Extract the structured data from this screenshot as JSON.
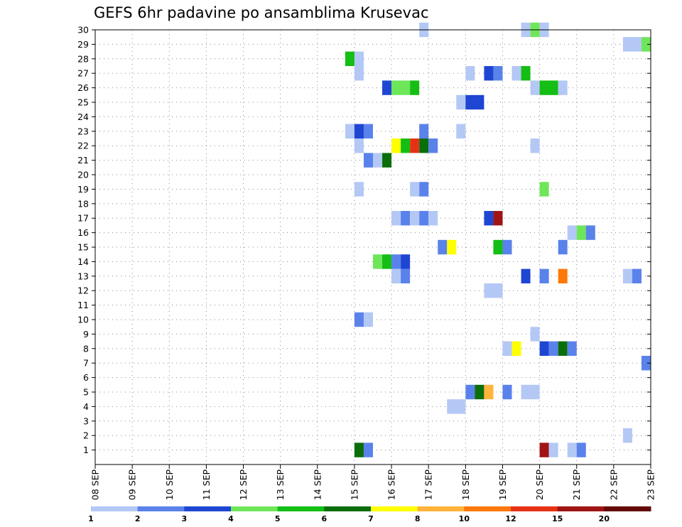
{
  "chart_data": {
    "type": "heatmap",
    "title": "GEFS 6hr padavine po ansamblima Krusevac",
    "xlabel": "",
    "ylabel": "",
    "x_ticks": [
      "08 SEP",
      "09 SEP",
      "10 SEP",
      "11 SEP",
      "12 SEP",
      "13 SEP",
      "14 SEP",
      "15 SEP",
      "16 SEP",
      "17 SEP",
      "18 SEP",
      "19 SEP",
      "20 SEP",
      "21 SEP",
      "22 SEP",
      "23 SEP"
    ],
    "y_ticks": [
      "1",
      "2",
      "3",
      "4",
      "5",
      "6",
      "7",
      "8",
      "9",
      "10",
      "11",
      "12",
      "13",
      "14",
      "15",
      "16",
      "17",
      "18",
      "19",
      "20",
      "21",
      "22",
      "23",
      "24",
      "25",
      "26",
      "27",
      "28",
      "29",
      "30"
    ],
    "x_range_days": [
      0,
      15
    ],
    "y_range": [
      0,
      30
    ],
    "grid": true,
    "legend": {
      "placement": "bottom",
      "labels": [
        "1",
        "2",
        "3",
        "4",
        "5",
        "6",
        "7",
        "8",
        "10",
        "12",
        "15",
        "20"
      ],
      "colors": [
        "#b4c8f5",
        "#5a82eb",
        "#1e46d2",
        "#6ee65a",
        "#14be14",
        "#0a6e0a",
        "#ffff00",
        "#ffb43c",
        "#ff780a",
        "#e63214",
        "#a01414",
        "#640a0a"
      ]
    },
    "cells": [
      {
        "m": 1,
        "t": [
          7.0,
          7.25
        ],
        "c": 5
      },
      {
        "m": 1,
        "t": [
          7.25,
          7.5
        ],
        "c": 1
      },
      {
        "m": 1,
        "t": [
          12.0,
          12.25
        ],
        "c": 10
      },
      {
        "m": 1,
        "t": [
          12.25,
          12.5
        ],
        "c": 0
      },
      {
        "m": 1,
        "t": [
          12.75,
          13.0
        ],
        "c": 0
      },
      {
        "m": 1,
        "t": [
          13.0,
          13.25
        ],
        "c": 1
      },
      {
        "m": 2,
        "t": [
          14.25,
          14.5
        ],
        "c": 0
      },
      {
        "m": 4,
        "t": [
          9.5,
          10.0
        ],
        "c": 0
      },
      {
        "m": 5,
        "t": [
          10.0,
          10.25
        ],
        "c": 1
      },
      {
        "m": 5,
        "t": [
          10.25,
          10.5
        ],
        "c": 5
      },
      {
        "m": 5,
        "t": [
          10.5,
          10.75
        ],
        "c": 7
      },
      {
        "m": 5,
        "t": [
          11.0,
          11.25
        ],
        "c": 1
      },
      {
        "m": 5,
        "t": [
          11.5,
          12.0
        ],
        "c": 0
      },
      {
        "m": 7,
        "t": [
          14.75,
          15.0
        ],
        "c": 1
      },
      {
        "m": 8,
        "t": [
          11.0,
          11.25
        ],
        "c": 0
      },
      {
        "m": 8,
        "t": [
          11.25,
          11.5
        ],
        "c": 6
      },
      {
        "m": 8,
        "t": [
          12.0,
          12.25
        ],
        "c": 2
      },
      {
        "m": 8,
        "t": [
          12.25,
          12.5
        ],
        "c": 1
      },
      {
        "m": 8,
        "t": [
          12.5,
          12.75
        ],
        "c": 5
      },
      {
        "m": 8,
        "t": [
          12.75,
          13.0
        ],
        "c": 1
      },
      {
        "m": 9,
        "t": [
          11.75,
          12.0
        ],
        "c": 0
      },
      {
        "m": 10,
        "t": [
          7.0,
          7.25
        ],
        "c": 1
      },
      {
        "m": 10,
        "t": [
          7.25,
          7.5
        ],
        "c": 0
      },
      {
        "m": 12,
        "t": [
          10.5,
          11.0
        ],
        "c": 0
      },
      {
        "m": 13,
        "t": [
          8.0,
          8.25
        ],
        "c": 0
      },
      {
        "m": 13,
        "t": [
          8.25,
          8.5
        ],
        "c": 1
      },
      {
        "m": 13,
        "t": [
          11.5,
          11.75
        ],
        "c": 2
      },
      {
        "m": 13,
        "t": [
          12.0,
          12.25
        ],
        "c": 1
      },
      {
        "m": 13,
        "t": [
          12.5,
          12.75
        ],
        "c": 8
      },
      {
        "m": 13,
        "t": [
          14.25,
          14.5
        ],
        "c": 0
      },
      {
        "m": 13,
        "t": [
          14.5,
          14.75
        ],
        "c": 1
      },
      {
        "m": 14,
        "t": [
          7.5,
          7.75
        ],
        "c": 3
      },
      {
        "m": 14,
        "t": [
          7.75,
          8.0
        ],
        "c": 4
      },
      {
        "m": 14,
        "t": [
          8.0,
          8.25
        ],
        "c": 1
      },
      {
        "m": 14,
        "t": [
          8.25,
          8.5
        ],
        "c": 2
      },
      {
        "m": 15,
        "t": [
          9.25,
          9.5
        ],
        "c": 1
      },
      {
        "m": 15,
        "t": [
          9.5,
          9.75
        ],
        "c": 6
      },
      {
        "m": 15,
        "t": [
          10.75,
          11.0
        ],
        "c": 4
      },
      {
        "m": 15,
        "t": [
          11.0,
          11.25
        ],
        "c": 1
      },
      {
        "m": 15,
        "t": [
          12.5,
          12.75
        ],
        "c": 1
      },
      {
        "m": 16,
        "t": [
          12.75,
          13.0
        ],
        "c": 0
      },
      {
        "m": 16,
        "t": [
          13.0,
          13.25
        ],
        "c": 3
      },
      {
        "m": 16,
        "t": [
          13.25,
          13.5
        ],
        "c": 1
      },
      {
        "m": 17,
        "t": [
          8.0,
          8.25
        ],
        "c": 0
      },
      {
        "m": 17,
        "t": [
          8.25,
          8.5
        ],
        "c": 1
      },
      {
        "m": 17,
        "t": [
          8.5,
          8.75
        ],
        "c": 0
      },
      {
        "m": 17,
        "t": [
          8.75,
          9.0
        ],
        "c": 1
      },
      {
        "m": 17,
        "t": [
          9.0,
          9.25
        ],
        "c": 0
      },
      {
        "m": 17,
        "t": [
          10.5,
          10.75
        ],
        "c": 2
      },
      {
        "m": 17,
        "t": [
          10.75,
          11.0
        ],
        "c": 10
      },
      {
        "m": 19,
        "t": [
          8.5,
          8.75
        ],
        "c": 0
      },
      {
        "m": 19,
        "t": [
          8.75,
          9.0
        ],
        "c": 1
      },
      {
        "m": 19,
        "t": [
          12.0,
          12.25
        ],
        "c": 3
      },
      {
        "m": 19,
        "t": [
          7.0,
          7.25
        ],
        "c": 0
      },
      {
        "m": 21,
        "t": [
          7.25,
          7.5
        ],
        "c": 1
      },
      {
        "m": 21,
        "t": [
          7.5,
          7.75
        ],
        "c": 0
      },
      {
        "m": 21,
        "t": [
          7.75,
          8.0
        ],
        "c": 5
      },
      {
        "m": 22,
        "t": [
          7.0,
          7.25
        ],
        "c": 0
      },
      {
        "m": 22,
        "t": [
          8.0,
          8.25
        ],
        "c": 6
      },
      {
        "m": 22,
        "t": [
          8.25,
          8.5
        ],
        "c": 4
      },
      {
        "m": 22,
        "t": [
          8.5,
          8.75
        ],
        "c": 9
      },
      {
        "m": 22,
        "t": [
          8.75,
          9.0
        ],
        "c": 5
      },
      {
        "m": 22,
        "t": [
          9.0,
          9.25
        ],
        "c": 1
      },
      {
        "m": 22,
        "t": [
          11.75,
          12.0
        ],
        "c": 0
      },
      {
        "m": 23,
        "t": [
          6.75,
          7.0
        ],
        "c": 0
      },
      {
        "m": 23,
        "t": [
          7.0,
          7.25
        ],
        "c": 2
      },
      {
        "m": 23,
        "t": [
          7.25,
          7.5
        ],
        "c": 1
      },
      {
        "m": 23,
        "t": [
          8.75,
          9.0
        ],
        "c": 1
      },
      {
        "m": 23,
        "t": [
          9.75,
          10.0
        ],
        "c": 0
      },
      {
        "m": 25,
        "t": [
          9.75,
          10.0
        ],
        "c": 0
      },
      {
        "m": 25,
        "t": [
          10.0,
          10.5
        ],
        "c": 2
      },
      {
        "m": 26,
        "t": [
          7.75,
          8.0
        ],
        "c": 2
      },
      {
        "m": 26,
        "t": [
          8.0,
          8.5
        ],
        "c": 3
      },
      {
        "m": 26,
        "t": [
          8.5,
          8.75
        ],
        "c": 4
      },
      {
        "m": 26,
        "t": [
          11.75,
          12.0
        ],
        "c": 0
      },
      {
        "m": 26,
        "t": [
          12.0,
          12.5
        ],
        "c": 4
      },
      {
        "m": 26,
        "t": [
          12.5,
          12.75
        ],
        "c": 0
      },
      {
        "m": 27,
        "t": [
          7.0,
          7.25
        ],
        "c": 0
      },
      {
        "m": 27,
        "t": [
          10.0,
          10.25
        ],
        "c": 0
      },
      {
        "m": 27,
        "t": [
          10.5,
          10.75
        ],
        "c": 2
      },
      {
        "m": 27,
        "t": [
          10.75,
          11.0
        ],
        "c": 1
      },
      {
        "m": 27,
        "t": [
          11.25,
          11.5
        ],
        "c": 0
      },
      {
        "m": 27,
        "t": [
          11.5,
          11.75
        ],
        "c": 4
      },
      {
        "m": 28,
        "t": [
          6.75,
          7.0
        ],
        "c": 4
      },
      {
        "m": 28,
        "t": [
          7.0,
          7.25
        ],
        "c": 0
      },
      {
        "m": 29,
        "t": [
          14.25,
          14.75
        ],
        "c": 0
      },
      {
        "m": 29,
        "t": [
          14.75,
          15.0
        ],
        "c": 3
      },
      {
        "m": 30,
        "t": [
          8.75,
          9.0
        ],
        "c": 0
      },
      {
        "m": 30,
        "t": [
          11.5,
          11.75
        ],
        "c": 0
      },
      {
        "m": 30,
        "t": [
          11.75,
          12.0
        ],
        "c": 3
      },
      {
        "m": 30,
        "t": [
          12.0,
          12.25
        ],
        "c": 0
      }
    ]
  }
}
